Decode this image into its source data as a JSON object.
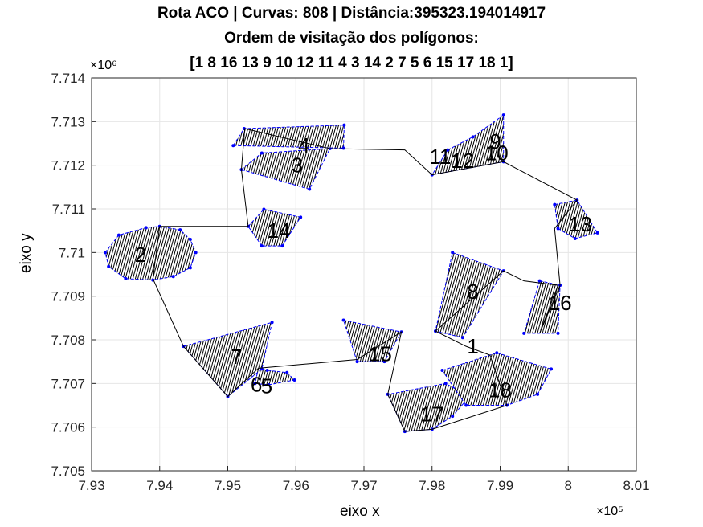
{
  "title_lines": [
    "Rota ACO | Curvas: 808 | Distância:395323.194014917",
    "Ordem de visitação dos polígonos:",
    "[1 8 16 13 9 10 12 11 4 3 14 2 7 5 6 15 17 18 1]"
  ],
  "chart_data": {
    "type": "line",
    "title": "Rota ACO | Curvas: 808 | Distância:395323.194014917",
    "subtitle": "Ordem de visitação dos polígonos: [1 8 16 13 9 10 12 11 4 3 14 2 7 5 6 15 17 18 1]",
    "xlabel": "eixo x",
    "ylabel": "eixo y",
    "x_exponent": "×10⁵",
    "y_exponent": "×10⁶",
    "xlim": [
      793000,
      801000
    ],
    "ylim": [
      7705000,
      7714000
    ],
    "xticks": [
      793000,
      794000,
      795000,
      796000,
      797000,
      798000,
      799000,
      800000,
      801000
    ],
    "xtick_labels": [
      "7.93",
      "7.94",
      "7.95",
      "7.96",
      "7.97",
      "7.98",
      "7.99",
      "8",
      "8.01"
    ],
    "yticks": [
      7705000,
      7706000,
      7707000,
      7708000,
      7709000,
      7710000,
      7711000,
      7712000,
      7713000,
      7714000
    ],
    "ytick_labels": [
      "7.705",
      "7.706",
      "7.707",
      "7.708",
      "7.709",
      "7.71",
      "7.711",
      "7.712",
      "7.713",
      "7.714"
    ],
    "grid": true,
    "colors": {
      "polygon_edge": "#0000ff",
      "hatch": "#000000",
      "route": "#000000",
      "grid": "#e6e6e6"
    },
    "polygons": [
      {
        "id": "1",
        "label_pos": [
          798600,
          7707850
        ],
        "points": []
      },
      {
        "id": "2",
        "label_pos": [
          793720,
          7709950
        ],
        "points": [
          [
            793200,
            7710000
          ],
          [
            793400,
            7710400
          ],
          [
            793800,
            7710570
          ],
          [
            794000,
            7710600
          ],
          [
            794300,
            7710520
          ],
          [
            794450,
            7710300
          ],
          [
            794530,
            7710000
          ],
          [
            794450,
            7709650
          ],
          [
            794200,
            7709450
          ],
          [
            793900,
            7709370
          ],
          [
            793500,
            7709400
          ],
          [
            793250,
            7709680
          ]
        ]
      },
      {
        "id": "3",
        "label_pos": [
          796020,
          7712000
        ],
        "points": [
          [
            795200,
            7711900
          ],
          [
            795500,
            7712280
          ],
          [
            796500,
            7712380
          ],
          [
            796200,
            7711450
          ]
        ]
      },
      {
        "id": "4",
        "label_pos": [
          796120,
          7712450
        ],
        "points": [
          [
            795080,
            7712450
          ],
          [
            795240,
            7712840
          ],
          [
            796710,
            7712920
          ],
          [
            796700,
            7712390
          ]
        ]
      },
      {
        "id": "5",
        "label_pos": [
          795570,
          7706940
        ],
        "points": [
          [
            795450,
            7707350
          ],
          [
            795580,
            7707300
          ],
          [
            795870,
            7707250
          ],
          [
            795980,
            7707080
          ],
          [
            795600,
            7706970
          ],
          [
            795400,
            7707000
          ]
        ]
      },
      {
        "id": "6",
        "label_pos": [
          795420,
          7706980
        ],
        "points": []
      },
      {
        "id": "7",
        "label_pos": [
          795130,
          7707610
        ],
        "points": [
          [
            794350,
            7707850
          ],
          [
            795650,
            7708400
          ],
          [
            795500,
            7707330
          ],
          [
            795000,
            7706700
          ]
        ]
      },
      {
        "id": "8",
        "label_pos": [
          798600,
          7709100
        ],
        "points": [
          [
            798300,
            7710000
          ],
          [
            799050,
            7709580
          ],
          [
            798450,
            7708050
          ],
          [
            798050,
            7708200
          ]
        ]
      },
      {
        "id": "9",
        "label_pos": [
          798930,
          7712550
        ],
        "points": []
      },
      {
        "id": "10",
        "label_pos": [
          798950,
          7712280
        ],
        "points": [
          [
            798230,
            7712350
          ],
          [
            798600,
            7712650
          ],
          [
            799050,
            7713150
          ],
          [
            799050,
            7712080
          ],
          [
            798000,
            7711780
          ]
        ]
      },
      {
        "id": "11",
        "label_pos": [
          798120,
          7712200
        ],
        "points": []
      },
      {
        "id": "12",
        "label_pos": [
          798450,
          7712100
        ],
        "points": []
      },
      {
        "id": "13",
        "label_pos": [
          800180,
          7710650
        ],
        "points": [
          [
            799800,
            7711100
          ],
          [
            800130,
            7711200
          ],
          [
            800430,
            7710450
          ],
          [
            800100,
            7710320
          ],
          [
            799850,
            7710550
          ]
        ]
      },
      {
        "id": "14",
        "label_pos": [
          795750,
          7710500
        ],
        "points": [
          [
            795300,
            7710600
          ],
          [
            795530,
            7710990
          ],
          [
            796070,
            7710810
          ],
          [
            795800,
            7710150
          ],
          [
            795500,
            7710150
          ]
        ]
      },
      {
        "id": "15",
        "label_pos": [
          797240,
          7707680
        ],
        "points": [
          [
            796700,
            7708450
          ],
          [
            797550,
            7708180
          ],
          [
            797300,
            7707500
          ],
          [
            796900,
            7707500
          ]
        ]
      },
      {
        "id": "16",
        "label_pos": [
          799880,
          7708850
        ],
        "points": [
          [
            799580,
            7709350
          ],
          [
            799880,
            7709250
          ],
          [
            799850,
            7708150
          ],
          [
            799350,
            7708150
          ]
        ]
      },
      {
        "id": "17",
        "label_pos": [
          798000,
          7706300
        ],
        "points": [
          [
            797350,
            7706750
          ],
          [
            797600,
            7705900
          ],
          [
            798000,
            7705950
          ],
          [
            798300,
            7706250
          ],
          [
            798550,
            7706700
          ],
          [
            798200,
            7707000
          ]
        ]
      },
      {
        "id": "18",
        "label_pos": [
          799000,
          7706850
        ],
        "points": [
          [
            798150,
            7707300
          ],
          [
            798950,
            7707700
          ],
          [
            799750,
            7707330
          ],
          [
            799550,
            7706750
          ],
          [
            799100,
            7706500
          ],
          [
            798500,
            7706500
          ]
        ]
      }
    ],
    "route": [
      [
        798500,
        7707850
      ],
      [
        798050,
        7708200
      ],
      [
        799050,
        7709580
      ],
      [
        799350,
        7709350
      ],
      [
        799850,
        7709250
      ],
      [
        799580,
        7708150
      ],
      [
        799880,
        7709250
      ],
      [
        799800,
        7710550
      ],
      [
        800130,
        7711200
      ],
      [
        799050,
        7712080
      ],
      [
        798000,
        7711780
      ],
      [
        797600,
        7712350
      ],
      [
        796500,
        7712380
      ],
      [
        795250,
        7712840
      ],
      [
        795200,
        7711900
      ],
      [
        795300,
        7710600
      ],
      [
        794000,
        7710600
      ],
      [
        793900,
        7709400
      ],
      [
        794350,
        7707850
      ],
      [
        795000,
        7706700
      ],
      [
        795450,
        7707350
      ],
      [
        796900,
        7707550
      ],
      [
        797550,
        7708180
      ],
      [
        797350,
        7706750
      ],
      [
        797600,
        7705900
      ],
      [
        798000,
        7705950
      ],
      [
        799100,
        7706500
      ],
      [
        798850,
        7707650
      ],
      [
        798500,
        7707850
      ]
    ]
  }
}
